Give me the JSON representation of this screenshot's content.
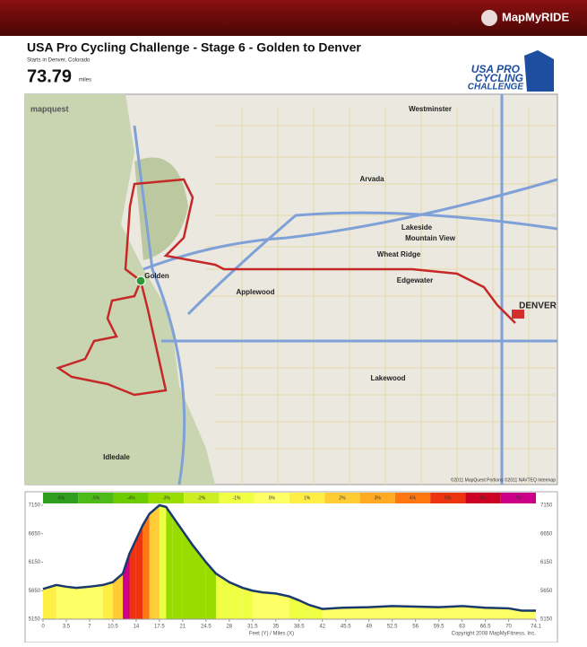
{
  "header": {
    "brand": "MapMyRIDE"
  },
  "route": {
    "title": "USA Pro Cycling Challenge - Stage 6 - Golden to Denver",
    "start": "Starts in Denver, Colorado",
    "distance": "73.79",
    "units": "miles"
  },
  "sponsor_logo": {
    "lines": [
      "USA PRO",
      "CYCLING",
      "CHALLENGE"
    ]
  },
  "map": {
    "provider": "mapquest",
    "attribution": "©2011 MapQuest Portions ©2011 NAVTEQ Intermap",
    "places": [
      "Golden",
      "Applewood",
      "Arvada",
      "Wheat Ridge",
      "Edgewater",
      "Lakewood",
      "Westminster",
      "DENVER",
      "Idledale",
      "Mountain View",
      "Lakeside"
    ]
  },
  "chart_data": {
    "type": "area",
    "grade_legend": {
      "labels": [
        "-6%",
        "-5%",
        "-4%",
        "-3%",
        "-2%",
        "-1%",
        "0%",
        "1%",
        "2%",
        "3%",
        "4%",
        "5%",
        "6%",
        "7%"
      ],
      "colors": [
        "#2f9e1f",
        "#4cbb17",
        "#6ccc00",
        "#99dd00",
        "#ccee22",
        "#eeff44",
        "#ffff66",
        "#ffee44",
        "#ffcc33",
        "#ffaa22",
        "#ff7711",
        "#ee3311",
        "#cc0022",
        "#cc0088"
      ]
    },
    "x": [
      0,
      2,
      3.5,
      5,
      7,
      9,
      10.5,
      12,
      13,
      14,
      15,
      16,
      17,
      17.5,
      18.5,
      19.5,
      21,
      22.5,
      24.5,
      26,
      28,
      30,
      31.5,
      33,
      35,
      37,
      38.5,
      40,
      42,
      45,
      49,
      52.5,
      56,
      59.5,
      63,
      66.5,
      70,
      72,
      74.1
    ],
    "values": [
      5680,
      5750,
      5720,
      5700,
      5720,
      5750,
      5800,
      5950,
      6300,
      6550,
      6800,
      7000,
      7100,
      7150,
      7120,
      6950,
      6700,
      6450,
      6150,
      5950,
      5800,
      5700,
      5650,
      5620,
      5600,
      5550,
      5480,
      5400,
      5330,
      5350,
      5360,
      5380,
      5370,
      5360,
      5380,
      5350,
      5340,
      5300,
      5300
    ],
    "line_color": "#1a3a6e",
    "xlim": [
      0,
      74.1
    ],
    "ylim": [
      5150,
      7150
    ],
    "xticks": [
      0,
      3.5,
      7,
      10.5,
      14,
      17.5,
      21,
      24.5,
      28,
      31.5,
      35,
      38.5,
      42,
      45.5,
      49,
      52.5,
      56,
      59.5,
      63,
      66.5,
      70,
      74.1
    ],
    "yticks": [
      5150,
      5650,
      6150,
      6650,
      7150
    ],
    "xlabel": "Feet (Y) / Miles (X)",
    "note": "Copyright 2008 MapMyFitness, Inc."
  }
}
